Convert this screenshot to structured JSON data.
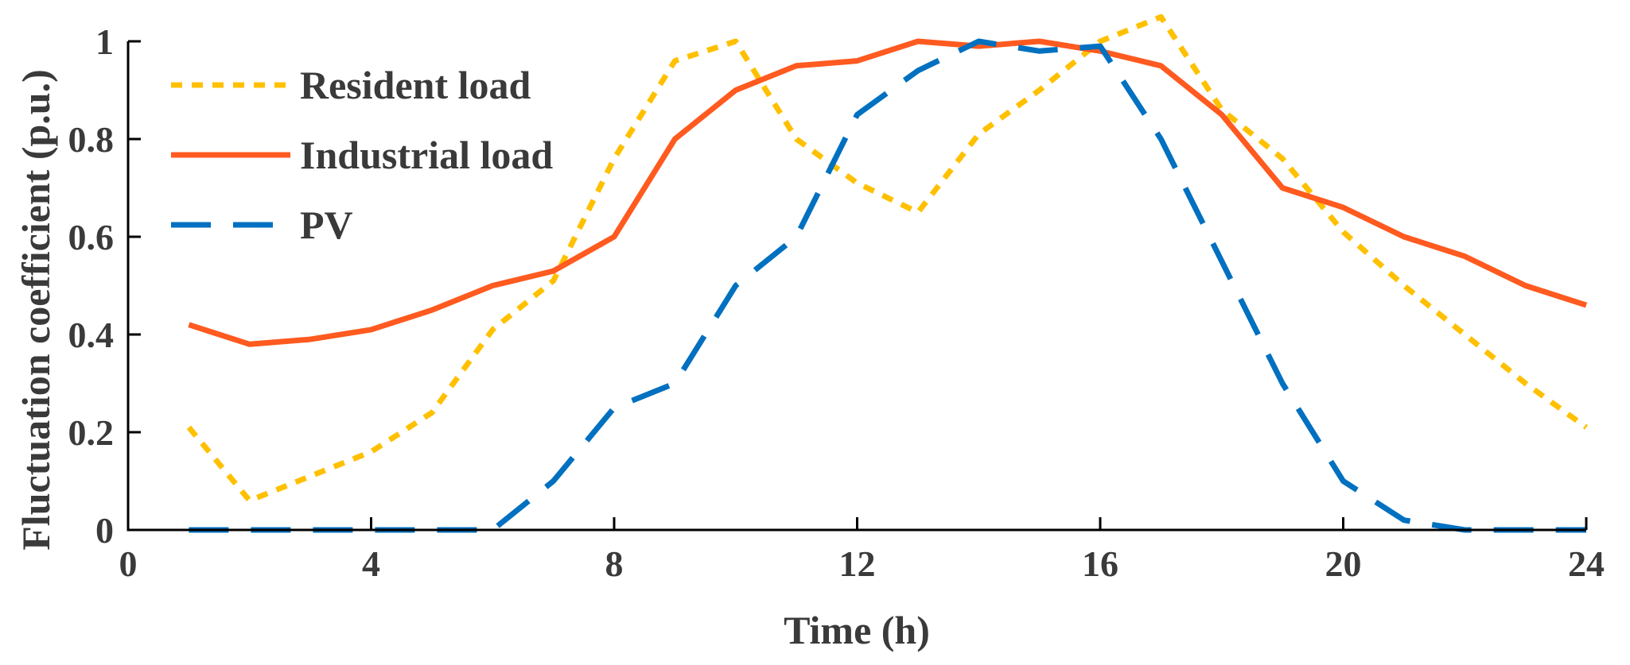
{
  "chart_data": {
    "type": "line",
    "xlabel": "Time (h)",
    "ylabel": "Fluctuation coefficient (p.u.)",
    "xlim": [
      0,
      24
    ],
    "ylim": [
      0,
      1
    ],
    "xticks": [
      0,
      4,
      8,
      12,
      16,
      20,
      24
    ],
    "yticks": [
      0,
      0.2,
      0.4,
      0.6,
      0.8,
      1
    ],
    "xtick_labels": [
      "0",
      "4",
      "8",
      "12",
      "16",
      "20",
      "24"
    ],
    "ytick_labels": [
      "0",
      "0.2",
      "0.4",
      "0.6",
      "0.8",
      "1"
    ],
    "grid": false,
    "legend_position": "top-left",
    "x": [
      1,
      2,
      3,
      4,
      5,
      6,
      7,
      8,
      9,
      10,
      11,
      12,
      13,
      14,
      15,
      16,
      17,
      18,
      19,
      20,
      21,
      22,
      23,
      24
    ],
    "series": [
      {
        "name": "Resident load",
        "color": "#FFC000",
        "style": "dotted",
        "values": [
          0.21,
          0.06,
          0.11,
          0.16,
          0.24,
          0.41,
          0.51,
          0.76,
          0.96,
          1.0,
          0.8,
          0.71,
          0.65,
          0.81,
          0.9,
          1.0,
          1.05,
          0.86,
          0.76,
          0.61,
          0.5,
          0.4,
          0.3,
          0.21
        ]
      },
      {
        "name": "Industrial load",
        "color": "#FF5A1F",
        "style": "solid",
        "values": [
          0.42,
          0.38,
          0.39,
          0.41,
          0.45,
          0.5,
          0.53,
          0.6,
          0.8,
          0.9,
          0.95,
          0.96,
          1.0,
          0.99,
          1.0,
          0.98,
          0.95,
          0.85,
          0.7,
          0.66,
          0.6,
          0.56,
          0.5,
          0.46
        ]
      },
      {
        "name": "PV",
        "color": "#0070C0",
        "style": "dashed",
        "values": [
          0,
          0,
          0,
          0,
          0,
          0,
          0.1,
          0.25,
          0.3,
          0.5,
          0.6,
          0.85,
          0.94,
          1.0,
          0.98,
          0.99,
          0.8,
          0.55,
          0.3,
          0.1,
          0.02,
          0,
          0,
          0
        ]
      }
    ]
  }
}
